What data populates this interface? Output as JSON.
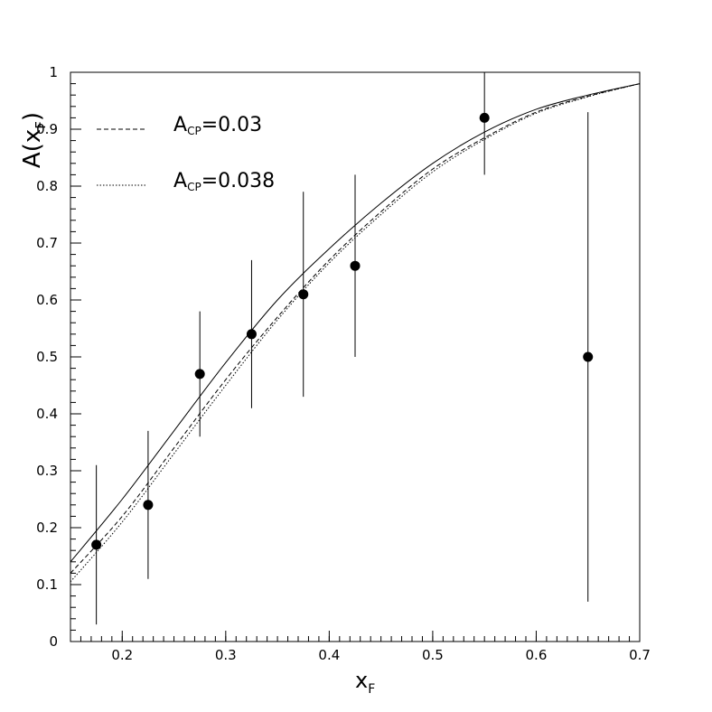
{
  "chart_data": {
    "type": "scatter",
    "xlabel_main": "x",
    "xlabel_sub": "F",
    "ylabel_main": "A(x",
    "ylabel_sub": "F",
    "ylabel_close": ")",
    "xlim": [
      0.15,
      0.7
    ],
    "ylim": [
      0,
      1
    ],
    "x_ticks": [
      0.2,
      0.3,
      0.4,
      0.5,
      0.6,
      0.7
    ],
    "x_tick_labels": [
      "0.2",
      "0.3",
      "0.4",
      "0.5",
      "0.6",
      "0.7"
    ],
    "y_ticks": [
      0,
      0.1,
      0.2,
      0.3,
      0.4,
      0.5,
      0.6,
      0.7,
      0.8,
      0.9,
      1
    ],
    "y_tick_labels": [
      "0",
      "0.1",
      "0.2",
      "0.3",
      "0.4",
      "0.5",
      "0.6",
      "0.7",
      "0.8",
      "0.9",
      "1"
    ],
    "grid": false,
    "legend_position": "top-left",
    "points": {
      "x": [
        0.175,
        0.225,
        0.275,
        0.325,
        0.375,
        0.425,
        0.55,
        0.65
      ],
      "y": [
        0.17,
        0.24,
        0.47,
        0.54,
        0.61,
        0.66,
        0.92,
        0.5
      ],
      "err_low": [
        0.03,
        0.11,
        0.36,
        0.41,
        0.43,
        0.5,
        0.82,
        0.07
      ],
      "err_high": [
        0.31,
        0.37,
        0.58,
        0.67,
        0.79,
        0.82,
        1.0,
        0.93
      ]
    },
    "series": [
      {
        "style": "solid",
        "x": [
          0.15,
          0.2,
          0.25,
          0.3,
          0.35,
          0.4,
          0.45,
          0.5,
          0.55,
          0.6,
          0.65,
          0.7
        ],
        "y": [
          0.14,
          0.25,
          0.37,
          0.49,
          0.6,
          0.69,
          0.77,
          0.84,
          0.895,
          0.935,
          0.96,
          0.98
        ]
      },
      {
        "legend_main": "A",
        "legend_sub": "CP",
        "legend_value": "=0.03",
        "style": "dashed",
        "x": [
          0.15,
          0.2,
          0.25,
          0.3,
          0.35,
          0.4,
          0.45,
          0.5,
          0.55,
          0.6,
          0.65,
          0.7
        ],
        "y": [
          0.12,
          0.22,
          0.34,
          0.46,
          0.57,
          0.67,
          0.755,
          0.83,
          0.885,
          0.93,
          0.958,
          0.98
        ]
      },
      {
        "legend_main": "A",
        "legend_sub": "CP",
        "legend_value": "=0.038",
        "style": "dotted",
        "x": [
          0.15,
          0.2,
          0.25,
          0.3,
          0.35,
          0.4,
          0.45,
          0.5,
          0.55,
          0.6,
          0.65,
          0.7
        ],
        "y": [
          0.105,
          0.21,
          0.33,
          0.45,
          0.565,
          0.665,
          0.75,
          0.825,
          0.882,
          0.928,
          0.957,
          0.98
        ]
      }
    ]
  }
}
